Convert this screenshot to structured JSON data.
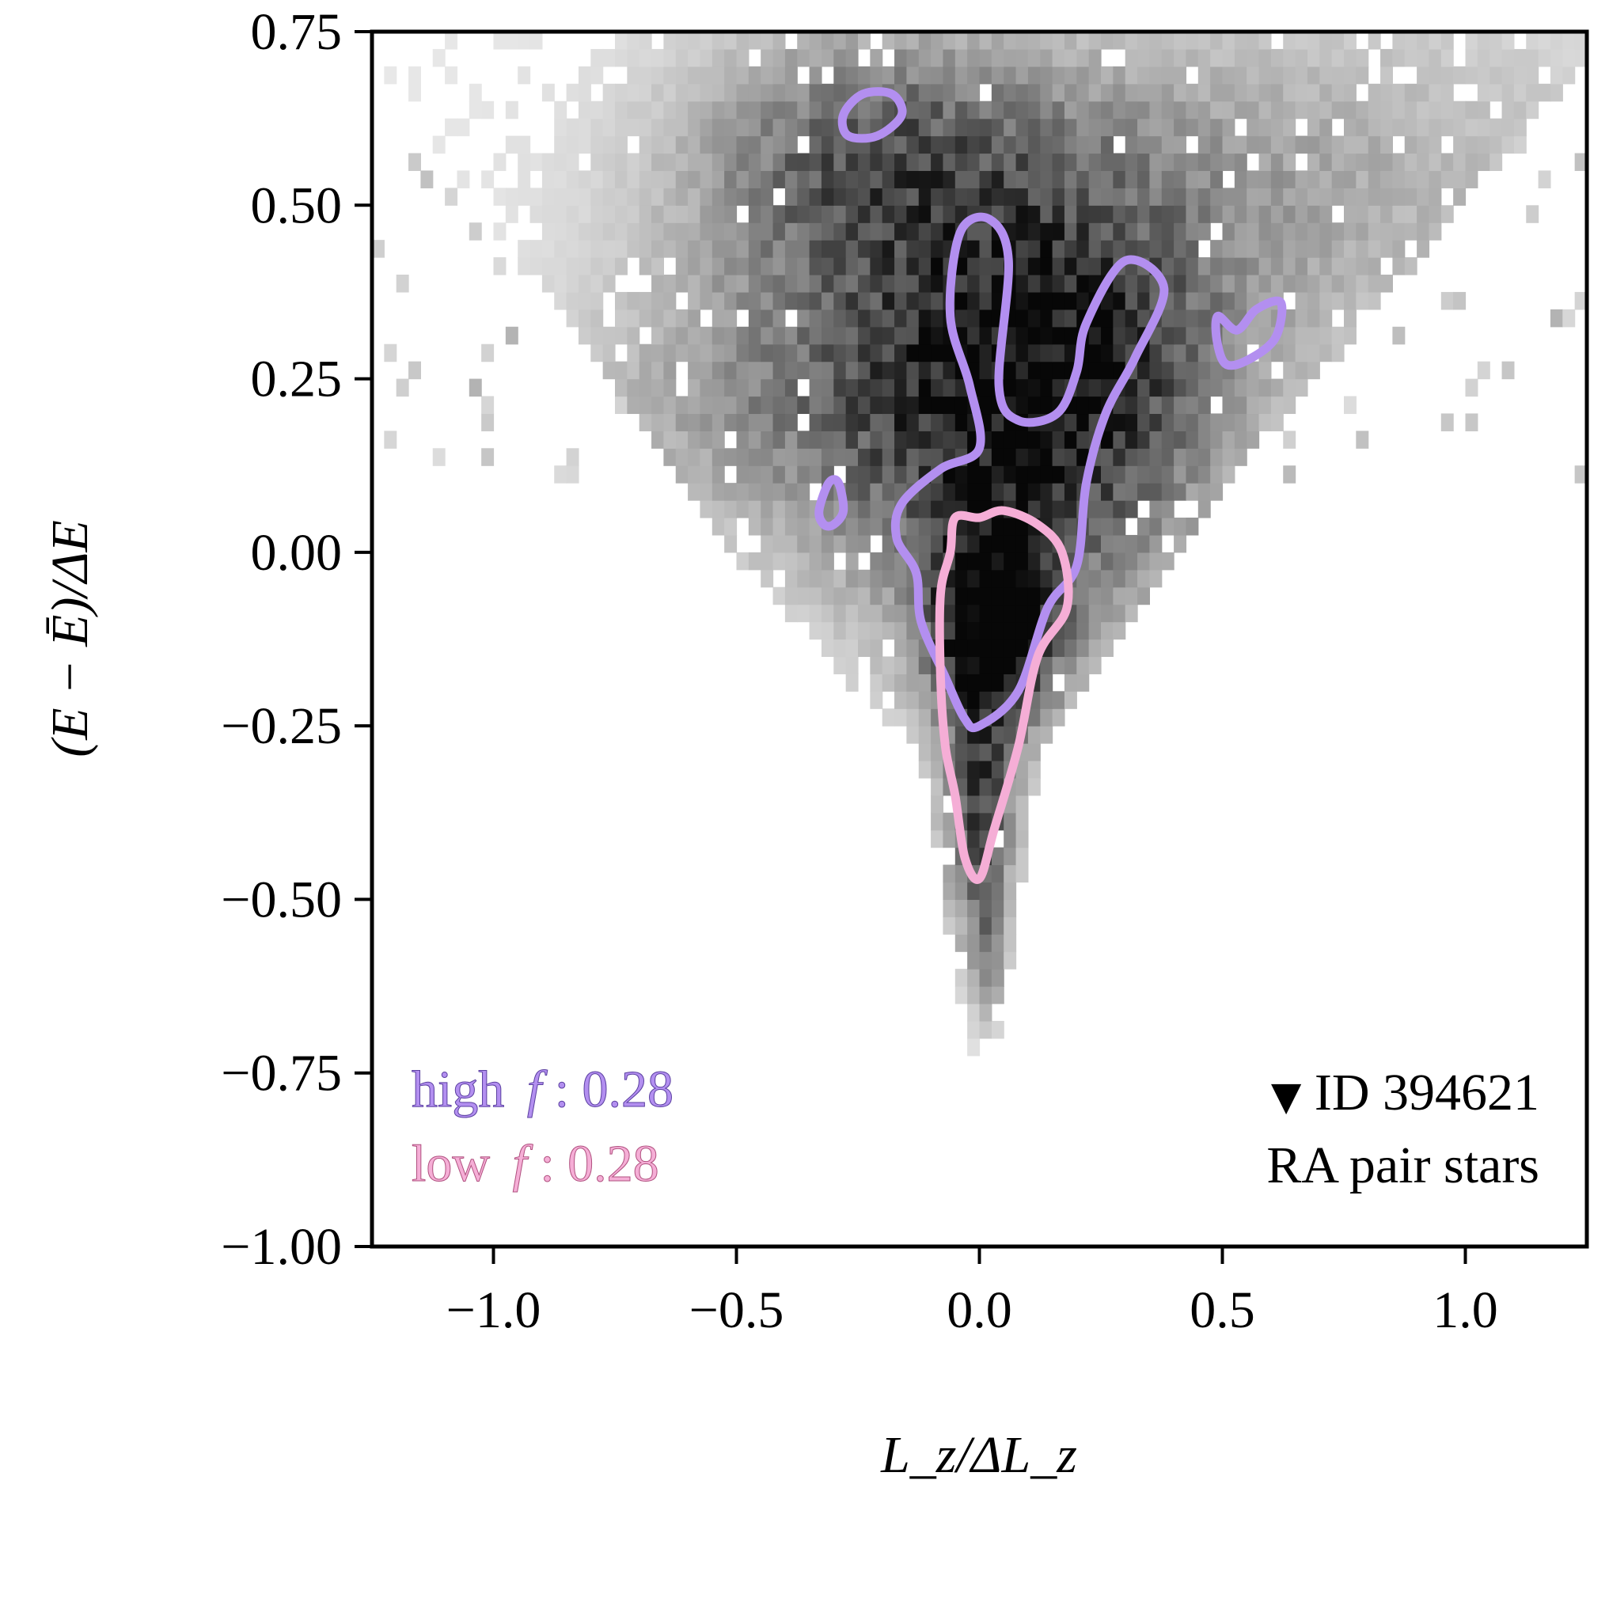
{
  "chart_data": {
    "type": "heatmap",
    "title": "",
    "xlabel": "L_z/ΔL_z",
    "ylabel": "(E − Ē)/ΔE",
    "xlim": [
      -1.25,
      1.25
    ],
    "ylim": [
      -1.0,
      0.75
    ],
    "x_ticks": [
      "−1.0",
      "−0.5",
      "0.0",
      "0.5",
      "1.0"
    ],
    "x_tick_values": [
      -1.0,
      -0.5,
      0.0,
      0.5,
      1.0
    ],
    "y_ticks": [
      "−1.00",
      "−0.75",
      "−0.50",
      "−0.25",
      "0.00",
      "0.25",
      "0.50",
      "0.75"
    ],
    "y_tick_values": [
      -1.0,
      -0.75,
      -0.5,
      -0.25,
      0.0,
      0.25,
      0.5,
      0.75
    ],
    "grid": false,
    "density": {
      "description": "2D histogram of stars in energy / angular-momentum space, grey scale",
      "peak": [
        0.03,
        -0.11
      ],
      "colormap": "Greys"
    },
    "series": [
      {
        "name": "high f",
        "color": "#b38ff0",
        "contours": [
          {
            "name": "main",
            "points": [
              [
                0.0,
                -0.25
              ],
              [
                0.08,
                -0.2
              ],
              [
                0.14,
                -0.08
              ],
              [
                0.2,
                -0.02
              ],
              [
                0.22,
                0.1
              ],
              [
                0.26,
                0.2
              ],
              [
                0.32,
                0.28
              ],
              [
                0.38,
                0.38
              ],
              [
                0.3,
                0.42
              ],
              [
                0.22,
                0.33
              ],
              [
                0.2,
                0.26
              ],
              [
                0.16,
                0.2
              ],
              [
                0.08,
                0.19
              ],
              [
                0.04,
                0.24
              ],
              [
                0.06,
                0.42
              ],
              [
                0.02,
                0.48
              ],
              [
                -0.04,
                0.46
              ],
              [
                -0.06,
                0.34
              ],
              [
                -0.02,
                0.24
              ],
              [
                0.0,
                0.15
              ],
              [
                -0.08,
                0.12
              ],
              [
                -0.16,
                0.07
              ],
              [
                -0.17,
                0.02
              ],
              [
                -0.13,
                -0.03
              ],
              [
                -0.12,
                -0.1
              ],
              [
                -0.07,
                -0.18
              ],
              [
                -0.03,
                -0.24
              ]
            ]
          },
          {
            "name": "upper-left blob",
            "points": [
              [
                -0.28,
                0.63
              ],
              [
                -0.24,
                0.66
              ],
              [
                -0.18,
                0.66
              ],
              [
                -0.16,
                0.63
              ],
              [
                -0.21,
                0.6
              ],
              [
                -0.27,
                0.6
              ]
            ]
          },
          {
            "name": "right blob",
            "points": [
              [
                0.49,
                0.34
              ],
              [
                0.53,
                0.32
              ],
              [
                0.57,
                0.35
              ],
              [
                0.62,
                0.36
              ],
              [
                0.61,
                0.31
              ],
              [
                0.56,
                0.28
              ],
              [
                0.51,
                0.27
              ],
              [
                0.49,
                0.3
              ]
            ]
          },
          {
            "name": "small left blob",
            "points": [
              [
                -0.33,
                0.06
              ],
              [
                -0.31,
                0.1
              ],
              [
                -0.29,
                0.1
              ],
              [
                -0.28,
                0.06
              ],
              [
                -0.3,
                0.04
              ],
              [
                -0.32,
                0.04
              ]
            ]
          }
        ]
      },
      {
        "name": "low f",
        "color": "#f5aed6",
        "contours": [
          {
            "name": "main",
            "points": [
              [
                0.0,
                -0.47
              ],
              [
                0.03,
                -0.4
              ],
              [
                0.08,
                -0.28
              ],
              [
                0.12,
                -0.15
              ],
              [
                0.18,
                -0.08
              ],
              [
                0.17,
                0.0
              ],
              [
                0.12,
                0.04
              ],
              [
                0.05,
                0.06
              ],
              [
                0.0,
                0.05
              ],
              [
                -0.05,
                0.05
              ],
              [
                -0.06,
                0.0
              ],
              [
                -0.08,
                -0.06
              ],
              [
                -0.08,
                -0.18
              ],
              [
                -0.07,
                -0.28
              ],
              [
                -0.05,
                -0.35
              ],
              [
                -0.03,
                -0.44
              ]
            ]
          }
        ]
      }
    ],
    "annotations": {
      "high_label": "high",
      "low_label": "low",
      "f_symbol": "f",
      "high_value": ": 0.28",
      "low_value": ": 0.28",
      "id_marker": "▼",
      "id_text": "ID 394621",
      "subtitle": "RA pair stars"
    }
  }
}
